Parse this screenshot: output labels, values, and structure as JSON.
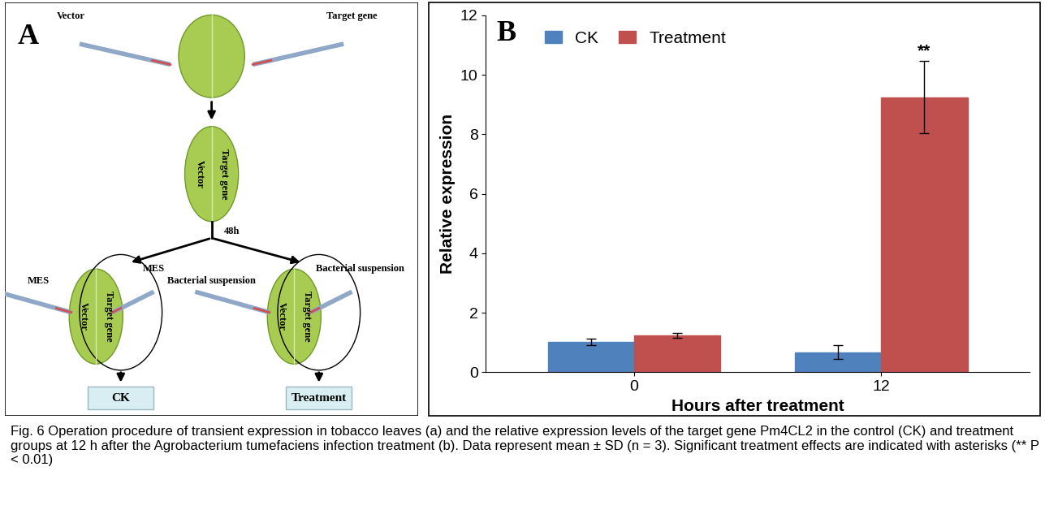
{
  "chart_data": {
    "type": "bar",
    "panel_label": "B",
    "x_label": "Hours after treatment",
    "y_label": "Relative expression",
    "categories": [
      "0",
      "12"
    ],
    "series": [
      {
        "name": "CK",
        "color": "#4f81bd",
        "values": [
          1.02,
          0.68
        ],
        "errors": [
          0.12,
          0.23
        ]
      },
      {
        "name": "Treatment",
        "color": "#c0504d",
        "values": [
          1.25,
          9.25
        ],
        "errors": [
          0.08,
          1.22
        ]
      }
    ],
    "ylim": [
      0,
      12
    ],
    "yticks": [
      0,
      2,
      4,
      6,
      8,
      10,
      12
    ],
    "legend": "upper left",
    "grid": false,
    "annotations": [
      {
        "text": "**",
        "category": "12",
        "series": "Treatment"
      }
    ]
  },
  "diagram": {
    "panel_label": "A",
    "top_leaf": {
      "left": "Vector",
      "right": "Target gene"
    },
    "middle_leaf": {
      "left": "Vector",
      "right": "Target gene"
    },
    "step": "48h",
    "left_leaf": {
      "left": "MES",
      "right": "MES",
      "inner_left": "Vector",
      "inner_right": "Target gene",
      "result": "CK"
    },
    "right_leaf": {
      "left": "Bacterial suspension",
      "right": "Bacterial suspension",
      "inner_left": "Vector",
      "inner_right": "Target gene",
      "result": "Treatment"
    }
  },
  "caption": "Fig. 6 Operation procedure of transient expression in tobacco leaves (a) and the relative expression levels of the target gene Pm4CL2 in the control (CK) and treatment groups at 12 h after the Agrobacterium tumefaciens infection treatment (b). Data represent mean ± SD (n = 3). Significant treatment effects are indicated with asterisks (** P < 0.01)"
}
